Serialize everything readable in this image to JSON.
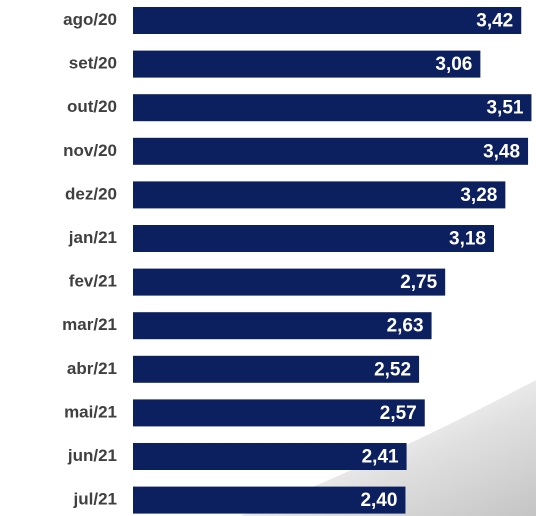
{
  "chart_data": {
    "type": "bar",
    "orientation": "horizontal",
    "categories": [
      "ago/20",
      "set/20",
      "out/20",
      "nov/20",
      "dez/20",
      "jan/21",
      "fev/21",
      "mar/21",
      "abr/21",
      "mai/21",
      "jun/21",
      "jul/21"
    ],
    "values": [
      3.42,
      3.06,
      3.51,
      3.48,
      3.28,
      3.18,
      2.75,
      2.63,
      2.52,
      2.57,
      2.41,
      2.4
    ],
    "value_labels": [
      "3,42",
      "3,06",
      "3,51",
      "3,48",
      "3,28",
      "3,18",
      "2,75",
      "2,63",
      "2,52",
      "2,57",
      "2,41",
      "2,40"
    ],
    "color": "#0c1f5e",
    "xlim": [
      0,
      3.55
    ]
  }
}
